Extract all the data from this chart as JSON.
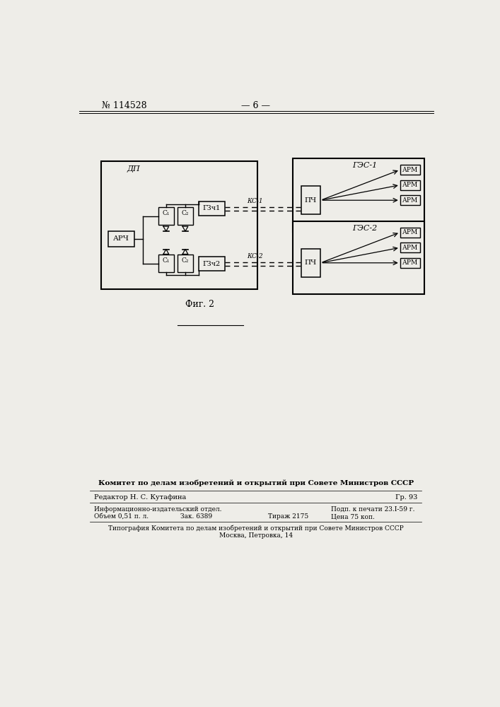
{
  "bg_color": "#f0f0eb",
  "title_left": "№ 114528",
  "title_center": "— 6 —",
  "fig_caption": "Фиг. 2",
  "dp_label": "ДП",
  "gzch1_label": "ГЗч1",
  "gzch2_label": "ГЗч2",
  "arch_label": "АРЧ",
  "gec1_label": "ГЭС-1",
  "gec2_label": "ГЭС-2",
  "pch_label": "ПЧ",
  "arm_label": "АРМ",
  "ks1_label": "КС-1",
  "ks2_label": "КС-2",
  "c1_label": "C₁",
  "c2_label": "C₂",
  "footer_bold": "Комитет по делам изобретений и открытий при Совете Министров СССР",
  "footer_editor": "Редактор Н. С. Кутафина",
  "footer_gr": "Гр. 93",
  "footer_info": "Информационно-издательский отдел.",
  "footer_podp": "Подп. к печати 23.І-59 г.",
  "footer_obem": "Объем 0,51 п. л.",
  "footer_zak": "Зак. 6389",
  "footer_tirazh": "Тираж 2175",
  "footer_cena": "Цена 75 коп.",
  "footer_tip1": "Типография Комитета по делам изобретений и открытий при Совете Министров СССР",
  "footer_tip2": "Москва, Петровка, 14"
}
